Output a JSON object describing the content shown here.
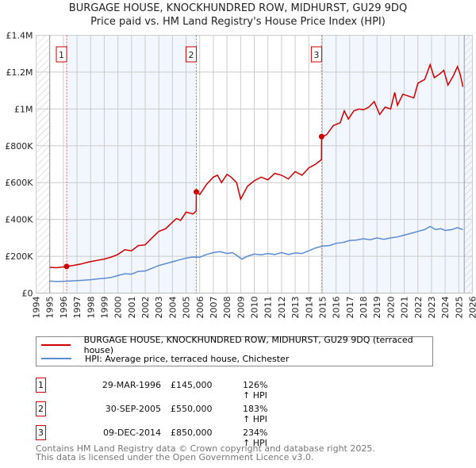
{
  "chart_data": {
    "type": "line",
    "title": "BURGAGE HOUSE, KNOCKHUNDRED ROW, MIDHURST, GU29 9DQ",
    "subtitle": "Price paid vs. HM Land Registry's House Price Index (HPI)",
    "xlabel": "",
    "ylabel": "",
    "xlim": [
      1994,
      2026
    ],
    "ylim": [
      0,
      1400000
    ],
    "x_ticks": [
      "1994",
      "1995",
      "1996",
      "1997",
      "1998",
      "1999",
      "2000",
      "2001",
      "2002",
      "2003",
      "2004",
      "2005",
      "2006",
      "2007",
      "2008",
      "2009",
      "2010",
      "2011",
      "2012",
      "2013",
      "2014",
      "2015",
      "2016",
      "2017",
      "2018",
      "2019",
      "2020",
      "2021",
      "2022",
      "2023",
      "2024",
      "2025",
      "2026"
    ],
    "y_ticks": [
      {
        "value": 0,
        "label": "£0"
      },
      {
        "value": 200000,
        "label": "£200K"
      },
      {
        "value": 400000,
        "label": "£400K"
      },
      {
        "value": 600000,
        "label": "£600K"
      },
      {
        "value": 800000,
        "label": "£800K"
      },
      {
        "value": 1000000,
        "label": "£1M"
      },
      {
        "value": 1200000,
        "label": "£1.2M"
      },
      {
        "value": 1400000,
        "label": "£1.4M"
      }
    ],
    "grid": true,
    "legend_placement": "below",
    "series": [
      {
        "name": "BURGAGE HOUSE, KNOCKHUNDRED ROW, MIDHURST, GU29 9DQ (terraced house)",
        "color": "#cc0000",
        "x": [
          1995.0,
          1995.5,
          1996.0,
          1996.24,
          1996.7,
          1997.3,
          1997.8,
          1998.5,
          1999.0,
          1999.5,
          2000.0,
          2000.5,
          2001.0,
          2001.5,
          2002.0,
          2002.5,
          2003.0,
          2003.5,
          2004.0,
          2004.3,
          2004.6,
          2005.0,
          2005.5,
          2005.74,
          2005.75,
          2006.0,
          2006.5,
          2007.0,
          2007.3,
          2007.6,
          2008.0,
          2008.3,
          2008.7,
          2009.0,
          2009.5,
          2010.0,
          2010.5,
          2011.0,
          2011.5,
          2012.0,
          2012.5,
          2013.0,
          2013.5,
          2014.0,
          2014.5,
          2014.93,
          2014.94,
          2015.3,
          2015.8,
          2016.3,
          2016.6,
          2016.9,
          2017.3,
          2017.7,
          2018.0,
          2018.4,
          2018.8,
          2019.2,
          2019.6,
          2020.0,
          2020.3,
          2020.5,
          2020.9,
          2021.3,
          2021.7,
          2022.0,
          2022.5,
          2022.9,
          2023.2,
          2023.6,
          2023.9,
          2024.2,
          2024.6,
          2024.9,
          2025.1,
          2025.3
        ],
        "y": [
          140000,
          138000,
          142000,
          145000,
          150000,
          158000,
          168000,
          178000,
          185000,
          195000,
          210000,
          235000,
          230000,
          258000,
          262000,
          300000,
          335000,
          350000,
          385000,
          405000,
          395000,
          440000,
          430000,
          445000,
          550000,
          535000,
          590000,
          630000,
          640000,
          600000,
          645000,
          630000,
          600000,
          510000,
          580000,
          610000,
          630000,
          615000,
          650000,
          640000,
          620000,
          660000,
          640000,
          680000,
          700000,
          725000,
          850000,
          860000,
          910000,
          925000,
          990000,
          945000,
          990000,
          1000000,
          995000,
          1010000,
          1040000,
          970000,
          1010000,
          1000000,
          1090000,
          1020000,
          1080000,
          1070000,
          1060000,
          1140000,
          1160000,
          1240000,
          1170000,
          1190000,
          1210000,
          1130000,
          1180000,
          1230000,
          1190000,
          1120000
        ]
      },
      {
        "name": "HPI: Average price, terraced house, Chichester",
        "color": "#5b8ccf",
        "x": [
          1995.0,
          1995.5,
          1996.0,
          1996.5,
          1997.0,
          1997.5,
          1998.0,
          1998.5,
          1999.0,
          1999.5,
          2000.0,
          2000.5,
          2001.0,
          2001.5,
          2002.0,
          2002.5,
          2003.0,
          2003.5,
          2004.0,
          2004.5,
          2005.0,
          2005.5,
          2006.0,
          2006.5,
          2007.0,
          2007.5,
          2008.0,
          2008.4,
          2008.8,
          2009.1,
          2009.5,
          2010.0,
          2010.5,
          2011.0,
          2011.5,
          2012.0,
          2012.5,
          2013.0,
          2013.5,
          2014.0,
          2014.5,
          2015.0,
          2015.5,
          2016.0,
          2016.5,
          2017.0,
          2017.5,
          2018.0,
          2018.5,
          2019.0,
          2019.5,
          2020.0,
          2020.5,
          2021.0,
          2021.5,
          2022.0,
          2022.5,
          2022.9,
          2023.3,
          2023.7,
          2024.0,
          2024.5,
          2024.9,
          2025.3
        ],
        "y": [
          65000,
          63000,
          64000,
          66000,
          68000,
          70000,
          73000,
          77000,
          80000,
          85000,
          95000,
          105000,
          103000,
          118000,
          120000,
          135000,
          150000,
          160000,
          170000,
          180000,
          190000,
          196000,
          195000,
          210000,
          220000,
          225000,
          215000,
          220000,
          200000,
          185000,
          200000,
          212000,
          208000,
          215000,
          210000,
          220000,
          210000,
          218000,
          215000,
          230000,
          245000,
          255000,
          258000,
          270000,
          275000,
          285000,
          288000,
          295000,
          290000,
          300000,
          292000,
          300000,
          305000,
          315000,
          325000,
          335000,
          345000,
          362000,
          345000,
          350000,
          340000,
          345000,
          355000,
          345000
        ]
      }
    ],
    "sales": [
      {
        "label": "1",
        "x": 1996.24,
        "price": 145000
      },
      {
        "label": "2",
        "x": 2005.75,
        "price": 550000
      },
      {
        "label": "3",
        "x": 2014.94,
        "price": 850000
      }
    ],
    "shaded_ranges": [
      [
        1996.24,
        2005.75
      ],
      [
        2014.94,
        2026
      ]
    ],
    "hatched_ranges": [
      [
        1994,
        1995
      ],
      [
        2025.4,
        2026
      ]
    ]
  },
  "legend": {
    "property": "BURGAGE HOUSE, KNOCKHUNDRED ROW, MIDHURST, GU29 9DQ (terraced house)",
    "hpi": "HPI: Average price, terraced house, Chichester"
  },
  "sales_table": [
    {
      "num": "1",
      "date": "29-MAR-1996",
      "price": "£145,000",
      "hpi": "126% ↑ HPI"
    },
    {
      "num": "2",
      "date": "30-SEP-2005",
      "price": "£550,000",
      "hpi": "183% ↑ HPI"
    },
    {
      "num": "3",
      "date": "09-DEC-2014",
      "price": "£850,000",
      "hpi": "234% ↑ HPI"
    }
  ],
  "footer": {
    "line1": "Contains HM Land Registry data © Crown copyright and database right 2025.",
    "line2": "This data is licensed under the Open Government Licence v3.0."
  },
  "colors": {
    "property": "#cc0000",
    "hpi": "#5b8ccf",
    "shade": "#f2f6fe",
    "grid": "#cccccc"
  }
}
